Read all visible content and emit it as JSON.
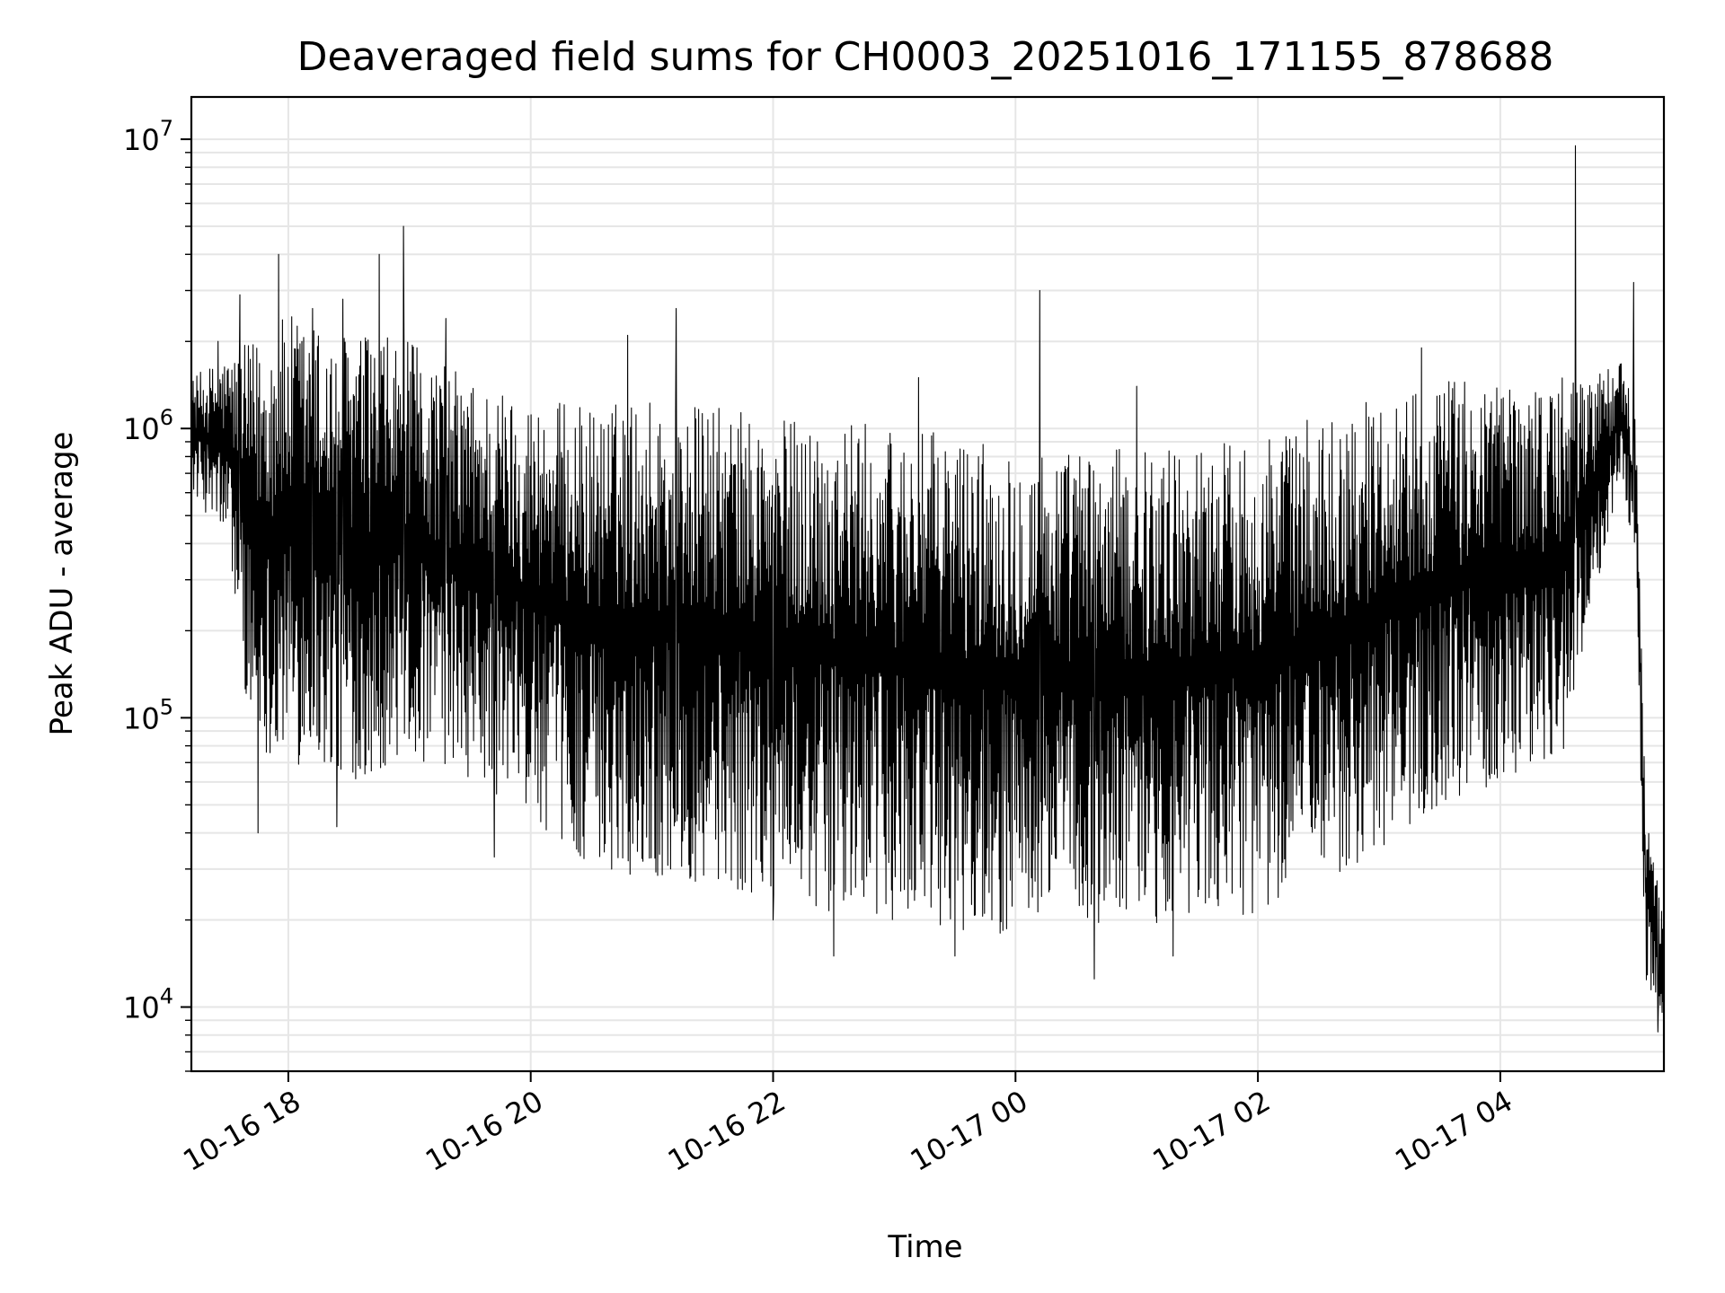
{
  "chart_data": {
    "type": "line",
    "title": "Deaveraged field sums for CH0003_20251016_171155_878688",
    "xlabel": "Time",
    "ylabel": "Peak ADU - average",
    "yscale": "log",
    "ylim": [
      6000,
      14000000
    ],
    "xlim_hours_from_1016_1700": [
      0.2,
      12.35
    ],
    "grid": true,
    "x_ticks": [
      {
        "hour": 1,
        "label": "10-16 18"
      },
      {
        "hour": 3,
        "label": "10-16 20"
      },
      {
        "hour": 5,
        "label": "10-16 22"
      },
      {
        "hour": 7,
        "label": "10-17 00"
      },
      {
        "hour": 9,
        "label": "10-17 02"
      },
      {
        "hour": 11,
        "label": "10-17 04"
      }
    ],
    "y_ticks": [
      {
        "value": 10000,
        "base": "10",
        "exp": "4"
      },
      {
        "value": 100000,
        "base": "10",
        "exp": "5"
      },
      {
        "value": 1000000,
        "base": "10",
        "exp": "6"
      },
      {
        "value": 10000000,
        "base": "10",
        "exp": "7"
      }
    ],
    "envelope": [
      {
        "hour": 0.2,
        "low": 600000,
        "high": 1500000
      },
      {
        "hour": 0.5,
        "low": 400000,
        "high": 1800000
      },
      {
        "hour": 0.7,
        "low": 80000,
        "high": 2000000
      },
      {
        "hour": 1.0,
        "low": 70000,
        "high": 2500000
      },
      {
        "hour": 1.5,
        "low": 60000,
        "high": 2200000
      },
      {
        "hour": 2.0,
        "low": 70000,
        "high": 2000000
      },
      {
        "hour": 2.5,
        "low": 60000,
        "high": 1500000
      },
      {
        "hour": 3.0,
        "low": 45000,
        "high": 1300000
      },
      {
        "hour": 3.5,
        "low": 30000,
        "high": 1200000
      },
      {
        "hour": 4.0,
        "low": 28000,
        "high": 1300000
      },
      {
        "hour": 4.5,
        "low": 26000,
        "high": 1200000
      },
      {
        "hour": 5.0,
        "low": 24000,
        "high": 1100000
      },
      {
        "hour": 5.5,
        "low": 21000,
        "high": 1100000
      },
      {
        "hour": 6.0,
        "low": 20000,
        "high": 1000000
      },
      {
        "hour": 6.5,
        "low": 18000,
        "high": 950000
      },
      {
        "hour": 7.0,
        "low": 18000,
        "high": 900000
      },
      {
        "hour": 7.5,
        "low": 19000,
        "high": 850000
      },
      {
        "hour": 8.0,
        "low": 19000,
        "high": 850000
      },
      {
        "hour": 8.5,
        "low": 20000,
        "high": 900000
      },
      {
        "hour": 9.0,
        "low": 21000,
        "high": 950000
      },
      {
        "hour": 9.5,
        "low": 26000,
        "high": 1100000
      },
      {
        "hour": 10.0,
        "low": 35000,
        "high": 1300000
      },
      {
        "hour": 10.5,
        "low": 50000,
        "high": 1500000
      },
      {
        "hour": 11.0,
        "low": 60000,
        "high": 1500000
      },
      {
        "hour": 11.5,
        "low": 70000,
        "high": 1500000
      },
      {
        "hour": 12.0,
        "low": 700000,
        "high": 1700000
      },
      {
        "hour": 12.12,
        "low": 300000,
        "high": 1100000
      },
      {
        "hour": 12.2,
        "low": 12000,
        "high": 50000
      },
      {
        "hour": 12.35,
        "low": 9000,
        "high": 19000
      }
    ],
    "spikes": [
      {
        "hour": 0.42,
        "value": 2000000
      },
      {
        "hour": 0.6,
        "value": 2900000
      },
      {
        "hour": 0.92,
        "value": 4000000
      },
      {
        "hour": 1.2,
        "value": 2600000
      },
      {
        "hour": 1.45,
        "value": 2800000
      },
      {
        "hour": 1.75,
        "value": 4000000
      },
      {
        "hour": 1.95,
        "value": 5000000
      },
      {
        "hour": 2.3,
        "value": 2400000
      },
      {
        "hour": 3.8,
        "value": 2100000
      },
      {
        "hour": 4.2,
        "value": 2600000
      },
      {
        "hour": 5.5,
        "value": 1600000
      },
      {
        "hour": 6.2,
        "value": 1500000
      },
      {
        "hour": 7.2,
        "value": 3000000
      },
      {
        "hour": 8.0,
        "value": 1400000
      },
      {
        "hour": 10.35,
        "value": 1900000
      },
      {
        "hour": 11.62,
        "value": 9500000
      },
      {
        "hour": 12.1,
        "value": 3200000
      }
    ],
    "dips": [
      {
        "hour": 0.75,
        "value": 40000
      },
      {
        "hour": 1.4,
        "value": 42000
      },
      {
        "hour": 2.7,
        "value": 33000
      },
      {
        "hour": 5.0,
        "value": 20000
      },
      {
        "hour": 5.5,
        "value": 15000
      },
      {
        "hour": 6.5,
        "value": 15000
      },
      {
        "hour": 7.65,
        "value": 12500
      },
      {
        "hour": 8.3,
        "value": 15000
      },
      {
        "hour": 12.3,
        "value": 8200
      }
    ]
  }
}
